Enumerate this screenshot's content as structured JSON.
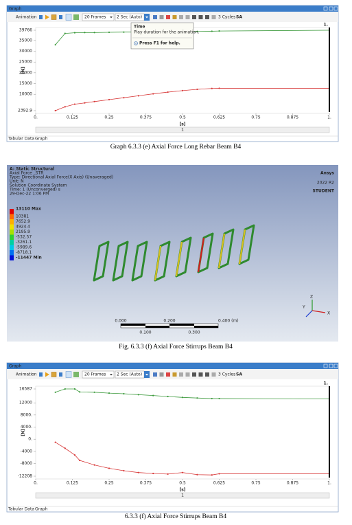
{
  "graph_windows": [
    {
      "window_title": "Graph",
      "toolbar": {
        "animation": "Animation",
        "frames": "20 Frames",
        "duration": "2 Sec (Auto)",
        "cycles": "3 Cycles",
        "mode": "SA"
      },
      "cursor_label": "1.",
      "scrollbar_label": "1",
      "tabs": [
        "Tabular Data",
        "Graph"
      ],
      "tooltip": {
        "title": "Time",
        "text": "Play duration for the animation.",
        "help": "Press F1 for help."
      }
    },
    {
      "window_title": "Graph",
      "toolbar": {
        "animation": "Animation",
        "frames": "20 Frames",
        "duration": "2 Sec (Auto)",
        "cycles": "3 Cycles",
        "mode": "SA"
      },
      "cursor_label": "1.",
      "scrollbar_label": "1",
      "tabs": [
        "Tabular Data",
        "Graph"
      ]
    }
  ],
  "captions": [
    "Graph 6.3.3 (e) Axial Force Long Rebar Beam B4",
    "Fig. 6.3.3 (f) Axial Force Stirrups Beam B4",
    "6.3.3 (f) Axial Force Stirrups Beam B4"
  ],
  "model_view": {
    "header": [
      "A: Static Structural",
      "Axial Force _STR",
      "Type: Directional Axial Force(X Axis) (Unaveraged)",
      "Unit: N",
      "Solution Coordinate System",
      "Time: 1 (Unconverged) s",
      "29-Dec-22 1:06 PM"
    ],
    "legend": [
      {
        "label": "13110 Max",
        "color": "#e00000"
      },
      {
        "label": "10381",
        "color": "#ff6a00"
      },
      {
        "label": "7652.9",
        "color": "#ffb000"
      },
      {
        "label": "4924.4",
        "color": "#f0e000"
      },
      {
        "label": "2195.9",
        "color": "#a8e000"
      },
      {
        "label": "-532.57",
        "color": "#30d030"
      },
      {
        "label": "-3261.1",
        "color": "#00d0a0"
      },
      {
        "label": "-5989.6",
        "color": "#00c8e8"
      },
      {
        "label": "-8718.1",
        "color": "#0070f0"
      },
      {
        "label": "-11447 Min",
        "color": "#0010d8"
      }
    ],
    "brand": [
      "Ansys",
      "2022 R2",
      "STUDENT"
    ],
    "scale_top": [
      "0.000",
      "0.200",
      "0.400 (m)"
    ],
    "scale_bottom": [
      "0.100",
      "0.300"
    ],
    "triad": [
      "Y",
      "Z",
      "X"
    ]
  },
  "chart_data": [
    {
      "type": "line",
      "xlabel": "[s]",
      "ylabel": "[N]",
      "x": [
        0.067,
        0.1,
        0.133,
        0.167,
        0.2,
        0.25,
        0.3,
        0.35,
        0.4,
        0.45,
        0.5,
        0.55,
        0.6,
        0.625,
        1.0
      ],
      "xlim": [
        0,
        1
      ],
      "xticks": [
        {
          "value": 0,
          "label": "0."
        },
        0.125,
        0.25,
        0.375,
        0.5,
        0.625,
        0.75,
        0.875,
        {
          "value": 1,
          "label": "1."
        }
      ],
      "ylim": [
        2392.9,
        39766
      ],
      "yticks": [
        2392.9,
        10000,
        15000,
        20000,
        25000,
        30000,
        35000,
        39766
      ],
      "series": [
        {
          "color": "#3c9a3c",
          "values": [
            33000,
            38300,
            38600,
            38700,
            38700,
            38800,
            38900,
            38900,
            39000,
            39100,
            39100,
            39200,
            39300,
            39400,
            39766
          ]
        },
        {
          "color": "#d83a3a",
          "values": [
            2392.9,
            4200,
            5400,
            6000,
            6600,
            7500,
            8400,
            9300,
            10200,
            11000,
            11700,
            12300,
            12700,
            12800,
            12800
          ]
        }
      ]
    },
    {
      "type": "line",
      "xlabel": "[s]",
      "ylabel": "[N]",
      "x": [
        0.067,
        0.1,
        0.133,
        0.15,
        0.2,
        0.25,
        0.3,
        0.35,
        0.4,
        0.45,
        0.5,
        0.55,
        0.6,
        0.625,
        1.0
      ],
      "xlim": [
        0,
        1
      ],
      "xticks": [
        {
          "value": 0,
          "label": "0."
        },
        0.125,
        0.25,
        0.375,
        0.5,
        0.625,
        0.75,
        0.875,
        {
          "value": 1,
          "label": "1."
        }
      ],
      "ylim": [
        -12208,
        16587
      ],
      "yticks": [
        -12208,
        -8000,
        -4000,
        {
          "value": 0,
          "label": "0."
        },
        {
          "value": 4000,
          "label": "4000."
        },
        {
          "value": 8000,
          "label": "8000."
        },
        12000,
        16587
      ],
      "series": [
        {
          "color": "#3c9a3c",
          "values": [
            15500,
            16587,
            16587,
            15600,
            15500,
            15200,
            15000,
            14700,
            14400,
            14100,
            13800,
            13600,
            13400,
            13400,
            13300
          ]
        },
        {
          "color": "#d83a3a",
          "values": [
            -1000,
            -3000,
            -5200,
            -7000,
            -8500,
            -9600,
            -10400,
            -11000,
            -11300,
            -11500,
            -11000,
            -11700,
            -11800,
            -11400,
            -11400
          ]
        }
      ]
    }
  ]
}
